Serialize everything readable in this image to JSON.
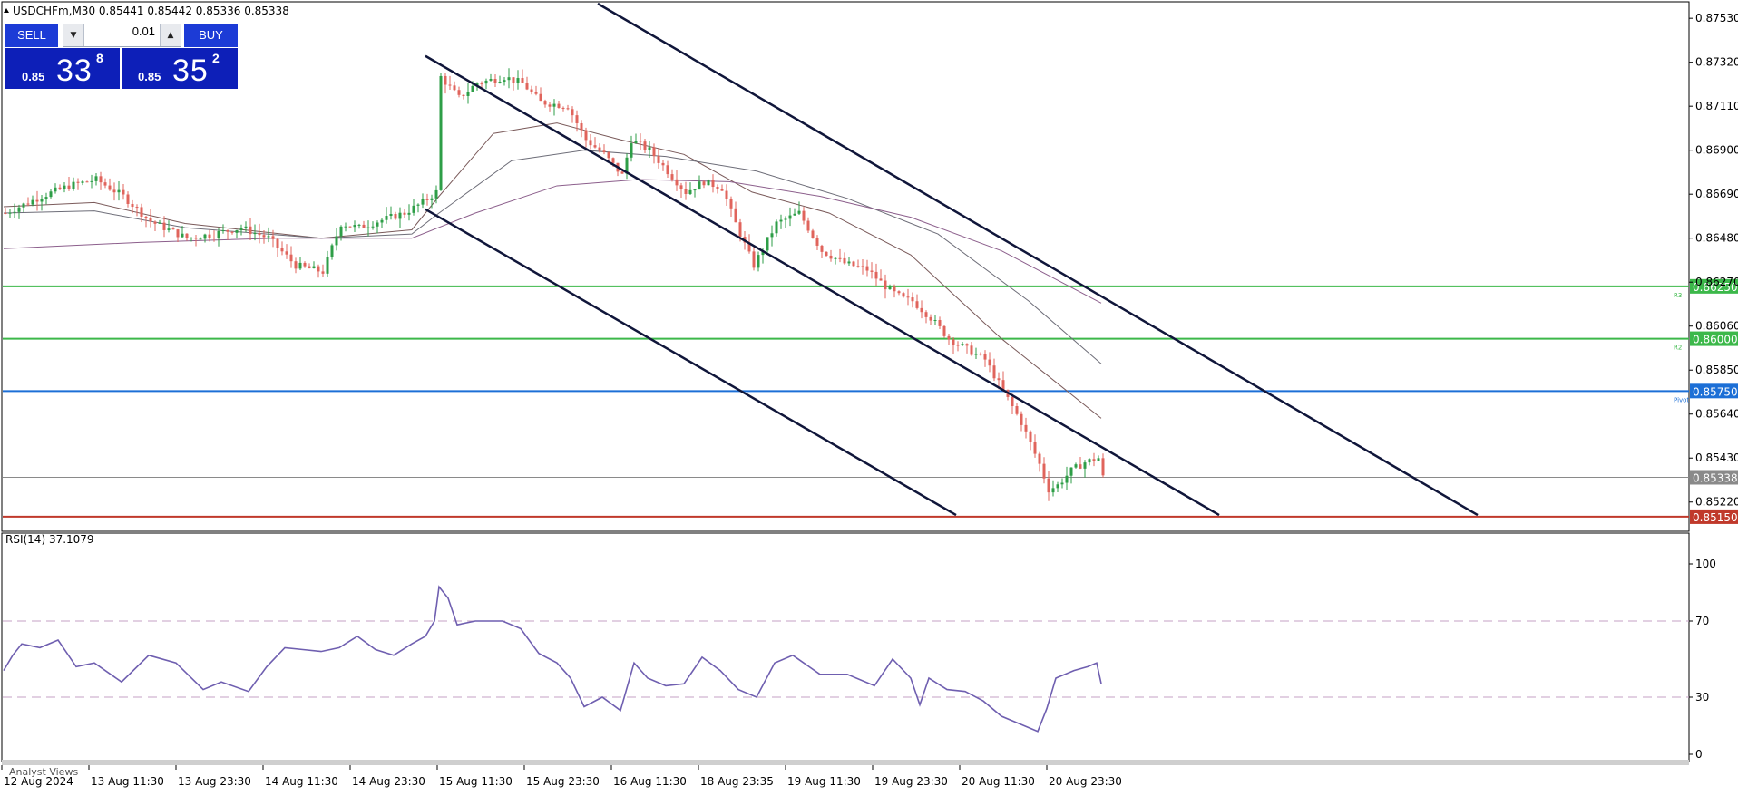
{
  "window": {
    "symbol_header": "USDCHFm,M30  0.85441 0.85442 0.85336 0.85338",
    "rsi_header": "RSI(14) 37.1079",
    "footer_label": "Analyst Views"
  },
  "trade_panel": {
    "sell_label": "SELL",
    "buy_label": "BUY",
    "lot_value": "0.01",
    "sell_prefix": "0.85",
    "sell_big": "33",
    "sell_sup": "8",
    "buy_prefix": "0.85",
    "buy_big": "35",
    "buy_sup": "2",
    "colors": {
      "button": "#1c3bd6",
      "box": "#0d1fb8"
    }
  },
  "chart_data": [
    {
      "type": "candlestick",
      "symbol": "USDCHFm",
      "timeframe": "M30",
      "ohlc_last": {
        "open": 0.85441,
        "high": 0.85442,
        "low": 0.85336,
        "close": 0.85338
      },
      "ylim": [
        0.85115,
        0.876
      ],
      "yticks": [
        0.8753,
        0.8732,
        0.8711,
        0.869,
        0.8669,
        0.8648,
        0.8627,
        0.8606,
        0.8585,
        0.8564,
        0.8543,
        0.8522
      ],
      "ytick_labels": [
        "0.87530",
        "0.87320",
        "0.87110",
        "0.86900",
        "0.86690",
        "0.86480",
        "0.86270",
        "0.86060",
        "0.85850",
        "0.85640",
        "0.85430",
        "0.85220"
      ],
      "xtick_labels": [
        "12 Aug 2024",
        "13 Aug 11:30",
        "13 Aug 23:30",
        "14 Aug 11:30",
        "14 Aug 23:30",
        "15 Aug 11:30",
        "15 Aug 23:30",
        "16 Aug 11:30",
        "18 Aug 23:35",
        "19 Aug 11:30",
        "19 Aug 23:30",
        "20 Aug 11:30",
        "20 Aug 23:30"
      ],
      "bars_count": 200,
      "bar_colors": {
        "up": "#2e9e47",
        "down": "#e0645c"
      },
      "close_path": [
        [
          0,
          0.866
        ],
        [
          8,
          0.8668
        ],
        [
          14,
          0.8673
        ],
        [
          20,
          0.8676
        ],
        [
          26,
          0.8668
        ],
        [
          32,
          0.8656
        ],
        [
          40,
          0.8648
        ],
        [
          46,
          0.865
        ],
        [
          52,
          0.8653
        ],
        [
          58,
          0.8648
        ],
        [
          64,
          0.8635
        ],
        [
          70,
          0.8632
        ],
        [
          74,
          0.8655
        ],
        [
          78,
          0.8653
        ],
        [
          82,
          0.8656
        ],
        [
          88,
          0.866
        ],
        [
          92,
          0.8665
        ],
        [
          95,
          0.867
        ],
        [
          96,
          0.8725
        ],
        [
          100,
          0.8715
        ],
        [
          104,
          0.8722
        ],
        [
          110,
          0.8725
        ],
        [
          114,
          0.8722
        ],
        [
          118,
          0.8713
        ],
        [
          124,
          0.8711
        ],
        [
          128,
          0.8695
        ],
        [
          132,
          0.8688
        ],
        [
          136,
          0.8678
        ],
        [
          138,
          0.8695
        ],
        [
          142,
          0.869
        ],
        [
          146,
          0.868
        ],
        [
          150,
          0.867
        ],
        [
          154,
          0.8675
        ],
        [
          158,
          0.8672
        ],
        [
          161,
          0.8655
        ],
        [
          165,
          0.8635
        ],
        [
          170,
          0.8655
        ],
        [
          175,
          0.866
        ],
        [
          180,
          0.8642
        ],
        [
          185,
          0.8636
        ],
        [
          190,
          0.8633
        ],
        [
          195,
          0.8623
        ],
        [
          198,
          0.8619
        ],
        [
          200,
          0.8618
        ],
        [
          204,
          0.861
        ],
        [
          208,
          0.86
        ],
        [
          212,
          0.8595
        ],
        [
          216,
          0.859
        ],
        [
          220,
          0.8575
        ],
        [
          224,
          0.856
        ],
        [
          228,
          0.854
        ],
        [
          230,
          0.8528
        ],
        [
          232,
          0.853
        ],
        [
          235,
          0.8537
        ],
        [
          238,
          0.8541
        ],
        [
          241,
          0.8543
        ],
        [
          242,
          0.85338
        ]
      ],
      "moving_averages": [
        {
          "color": "#7a5a5a",
          "path": [
            [
              0,
              0.8663
            ],
            [
              20,
              0.8665
            ],
            [
              40,
              0.8655
            ],
            [
              70,
              0.8648
            ],
            [
              90,
              0.8652
            ],
            [
              96,
              0.8668
            ],
            [
              108,
              0.8698
            ],
            [
              122,
              0.8703
            ],
            [
              136,
              0.8695
            ],
            [
              150,
              0.8688
            ],
            [
              165,
              0.867
            ],
            [
              182,
              0.866
            ],
            [
              200,
              0.864
            ],
            [
              220,
              0.86
            ],
            [
              242,
              0.8562
            ]
          ]
        },
        {
          "color": "#6d6d78",
          "path": [
            [
              0,
              0.866
            ],
            [
              20,
              0.8661
            ],
            [
              40,
              0.8653
            ],
            [
              70,
              0.8648
            ],
            [
              90,
              0.865
            ],
            [
              96,
              0.866
            ],
            [
              112,
              0.8685
            ],
            [
              128,
              0.869
            ],
            [
              146,
              0.8687
            ],
            [
              166,
              0.868
            ],
            [
              186,
              0.8667
            ],
            [
              206,
              0.865
            ],
            [
              226,
              0.8618
            ],
            [
              242,
              0.8588
            ]
          ]
        },
        {
          "color": "#8c5f8c",
          "path": [
            [
              0,
              0.8643
            ],
            [
              30,
              0.8646
            ],
            [
              60,
              0.8648
            ],
            [
              90,
              0.8648
            ],
            [
              104,
              0.866
            ],
            [
              122,
              0.8673
            ],
            [
              140,
              0.8676
            ],
            [
              160,
              0.8675
            ],
            [
              180,
              0.8668
            ],
            [
              200,
              0.8658
            ],
            [
              220,
              0.8642
            ],
            [
              242,
              0.8617
            ]
          ]
        }
      ],
      "channel_lines": [
        {
          "color": "#10163a",
          "points": [
            [
              131,
              0.876
            ],
            [
              325,
              0.85158
            ]
          ]
        },
        {
          "color": "#10163a",
          "points": [
            [
              93,
              0.8735
            ],
            [
              268,
              0.85158
            ]
          ]
        },
        {
          "color": "#10163a",
          "points": [
            [
              93,
              0.86618
            ],
            [
              210,
              0.85158
            ]
          ]
        }
      ],
      "horizontal_levels": [
        {
          "value": 0.8625,
          "label": "0.86250",
          "tag": "R3",
          "color": "#3cb84a"
        },
        {
          "value": 0.86,
          "label": "0.86000",
          "tag": "R2",
          "color": "#3cb84a"
        },
        {
          "value": 0.8575,
          "label": "0.85750",
          "tag": "Pivot",
          "color": "#1c6fd6"
        },
        {
          "value": 0.85338,
          "label": "0.85338",
          "tag": "",
          "color": "#8a8a8a"
        },
        {
          "value": 0.8515,
          "label": "0.85150",
          "tag": "",
          "color": "#c0392b"
        }
      ]
    },
    {
      "type": "line",
      "name": "RSI(14) 37.1079",
      "ylim": [
        0,
        100
      ],
      "yticks": [
        100,
        70,
        30,
        0
      ],
      "ytick_labels": [
        "100",
        "70",
        "30",
        "0"
      ],
      "guide_levels": [
        70,
        30
      ],
      "color": "#6f5fb0",
      "path": [
        [
          0,
          44
        ],
        [
          2,
          52
        ],
        [
          4,
          58
        ],
        [
          8,
          56
        ],
        [
          12,
          60
        ],
        [
          16,
          46
        ],
        [
          20,
          48
        ],
        [
          26,
          38
        ],
        [
          32,
          52
        ],
        [
          38,
          48
        ],
        [
          44,
          34
        ],
        [
          48,
          38
        ],
        [
          54,
          33
        ],
        [
          58,
          46
        ],
        [
          62,
          56
        ],
        [
          66,
          55
        ],
        [
          70,
          54
        ],
        [
          74,
          56
        ],
        [
          78,
          62
        ],
        [
          82,
          55
        ],
        [
          86,
          52
        ],
        [
          90,
          58
        ],
        [
          93,
          62
        ],
        [
          95,
          70
        ],
        [
          96,
          88
        ],
        [
          98,
          82
        ],
        [
          100,
          68
        ],
        [
          104,
          70
        ],
        [
          110,
          70
        ],
        [
          114,
          66
        ],
        [
          118,
          53
        ],
        [
          122,
          48
        ],
        [
          125,
          40
        ],
        [
          128,
          25
        ],
        [
          132,
          30
        ],
        [
          136,
          23
        ],
        [
          139,
          48
        ],
        [
          142,
          40
        ],
        [
          146,
          36
        ],
        [
          150,
          37
        ],
        [
          154,
          51
        ],
        [
          158,
          44
        ],
        [
          162,
          34
        ],
        [
          166,
          30
        ],
        [
          170,
          48
        ],
        [
          174,
          52
        ],
        [
          180,
          42
        ],
        [
          186,
          42
        ],
        [
          192,
          36
        ],
        [
          196,
          50
        ],
        [
          200,
          40
        ],
        [
          202,
          26
        ],
        [
          204,
          40
        ],
        [
          208,
          34
        ],
        [
          212,
          33
        ],
        [
          216,
          28
        ],
        [
          220,
          20
        ],
        [
          224,
          16
        ],
        [
          228,
          12
        ],
        [
          230,
          24
        ],
        [
          232,
          40
        ],
        [
          236,
          44
        ],
        [
          239,
          46
        ],
        [
          241,
          48
        ],
        [
          242,
          37.1
        ]
      ]
    }
  ]
}
